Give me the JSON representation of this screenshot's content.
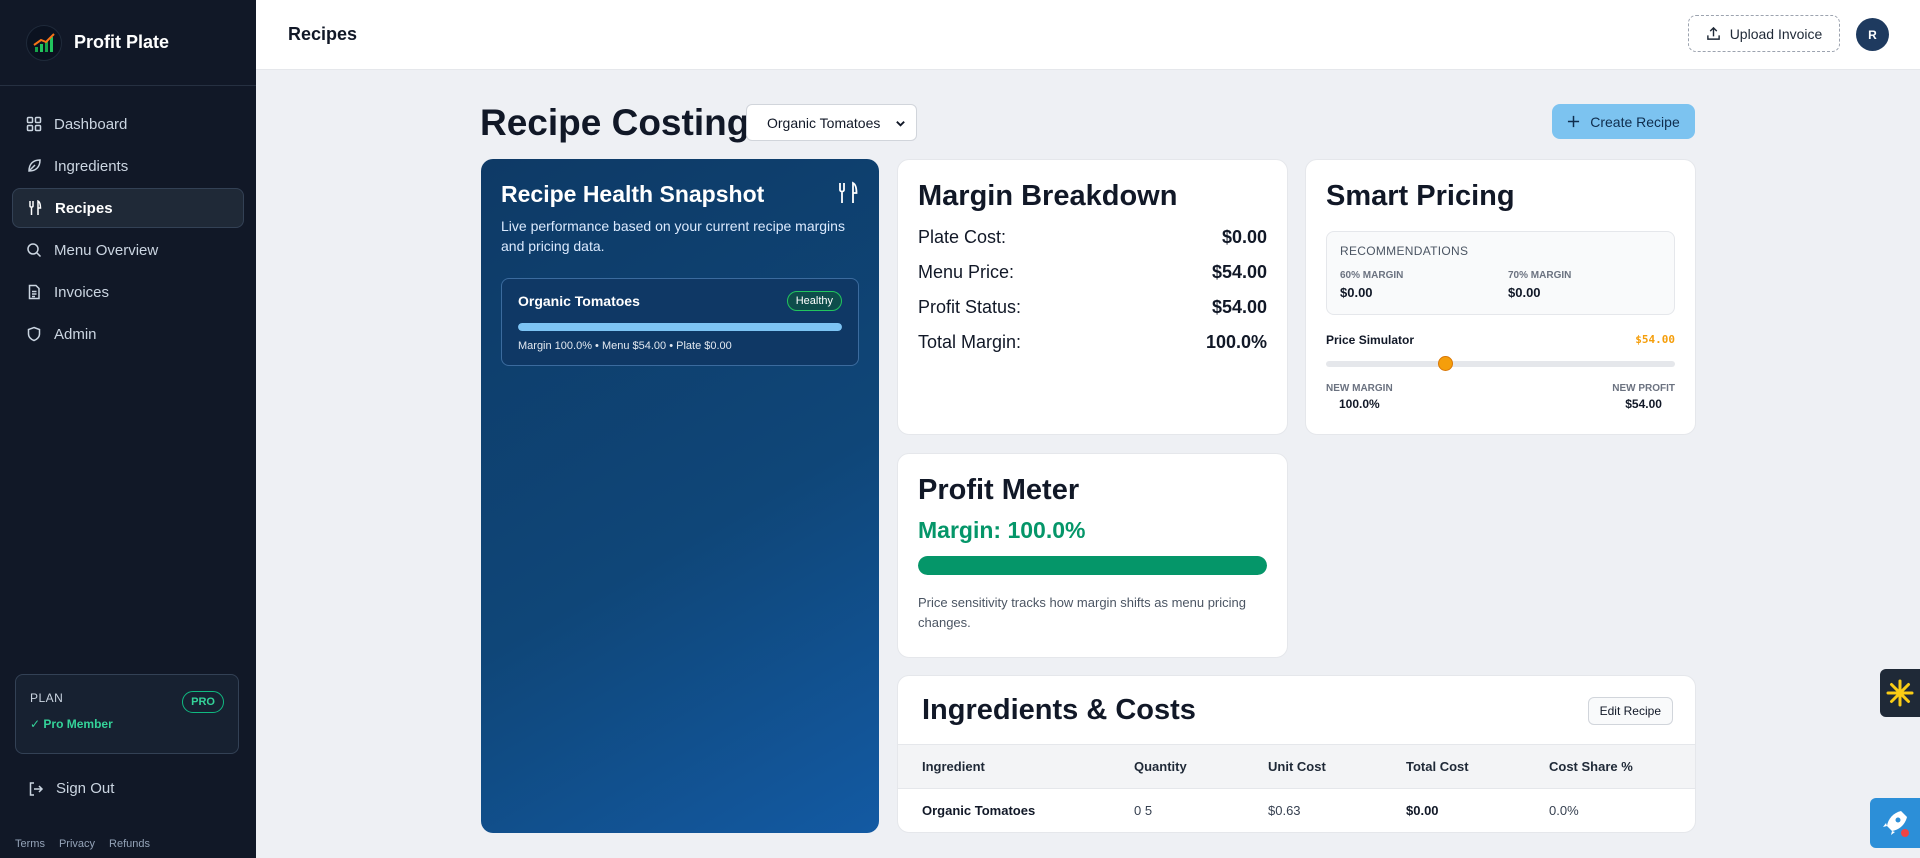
{
  "brand": {
    "name": "Profit Plate"
  },
  "sidebar": {
    "items": [
      {
        "label": "Dashboard",
        "icon": "grid-icon"
      },
      {
        "label": "Ingredients",
        "icon": "leaf-icon"
      },
      {
        "label": "Recipes",
        "icon": "utensils-icon",
        "active": true
      },
      {
        "label": "Menu Overview",
        "icon": "search-icon"
      },
      {
        "label": "Invoices",
        "icon": "document-icon"
      },
      {
        "label": "Admin",
        "icon": "shield-icon"
      }
    ],
    "plan": {
      "label": "PLAN",
      "badge": "PRO",
      "status": "✓ Pro Member"
    },
    "sign_out": "Sign Out",
    "footer": {
      "terms": "Terms",
      "privacy": "Privacy",
      "refunds": "Refunds"
    }
  },
  "topbar": {
    "title": "Recipes",
    "upload_label": "Upload Invoice",
    "avatar_initial": "R"
  },
  "page": {
    "title": "Recipe Costing",
    "selected_recipe": "Organic Tomatoes",
    "create_label": "Create Recipe"
  },
  "health": {
    "title": "Recipe Health Snapshot",
    "description": "Live performance based on your current recipe margins and pricing data.",
    "item": {
      "name": "Organic Tomatoes",
      "badge": "Healthy",
      "progress": 1.0,
      "meta": "Margin 100.0% • Menu $54.00 • Plate $0.00"
    }
  },
  "margin": {
    "title": "Margin Breakdown",
    "rows": [
      {
        "label": "Plate Cost:",
        "value": "$0.00"
      },
      {
        "label": "Menu Price:",
        "value": "$54.00"
      },
      {
        "label": "Profit Status:",
        "value": "$54.00"
      },
      {
        "label": "Total Margin:",
        "value": "100.0%"
      }
    ]
  },
  "pricing": {
    "title": "Smart Pricing",
    "recommendations_label": "RECOMMENDATIONS",
    "rec": [
      {
        "label": "60% MARGIN",
        "value": "$0.00"
      },
      {
        "label": "70% MARGIN",
        "value": "$0.00"
      }
    ],
    "simulator_label": "Price Simulator",
    "simulator_price": "$54.00",
    "slider_position": 0.34,
    "new_margin_label": "NEW MARGIN",
    "new_margin_value": "100.0%",
    "new_profit_label": "NEW PROFIT",
    "new_profit_value": "$54.00"
  },
  "profit": {
    "title": "Profit Meter",
    "margin_text": "Margin: 100.0%",
    "progress": 1.0,
    "description": "Price sensitivity tracks how margin shifts as menu pricing changes."
  },
  "ingredients": {
    "title": "Ingredients & Costs",
    "edit_label": "Edit Recipe",
    "columns": [
      "Ingredient",
      "Quantity",
      "Unit Cost",
      "Total Cost",
      "Cost Share %"
    ],
    "rows": [
      [
        "Organic Tomatoes",
        "0 5",
        "$0.63",
        "$0.00",
        "0.0%"
      ]
    ]
  },
  "colors": {
    "sidebar_bg": "#111827",
    "accent_blue": "#7cc3f0",
    "success_green": "#059669",
    "warning_orange": "#f59e0b"
  }
}
